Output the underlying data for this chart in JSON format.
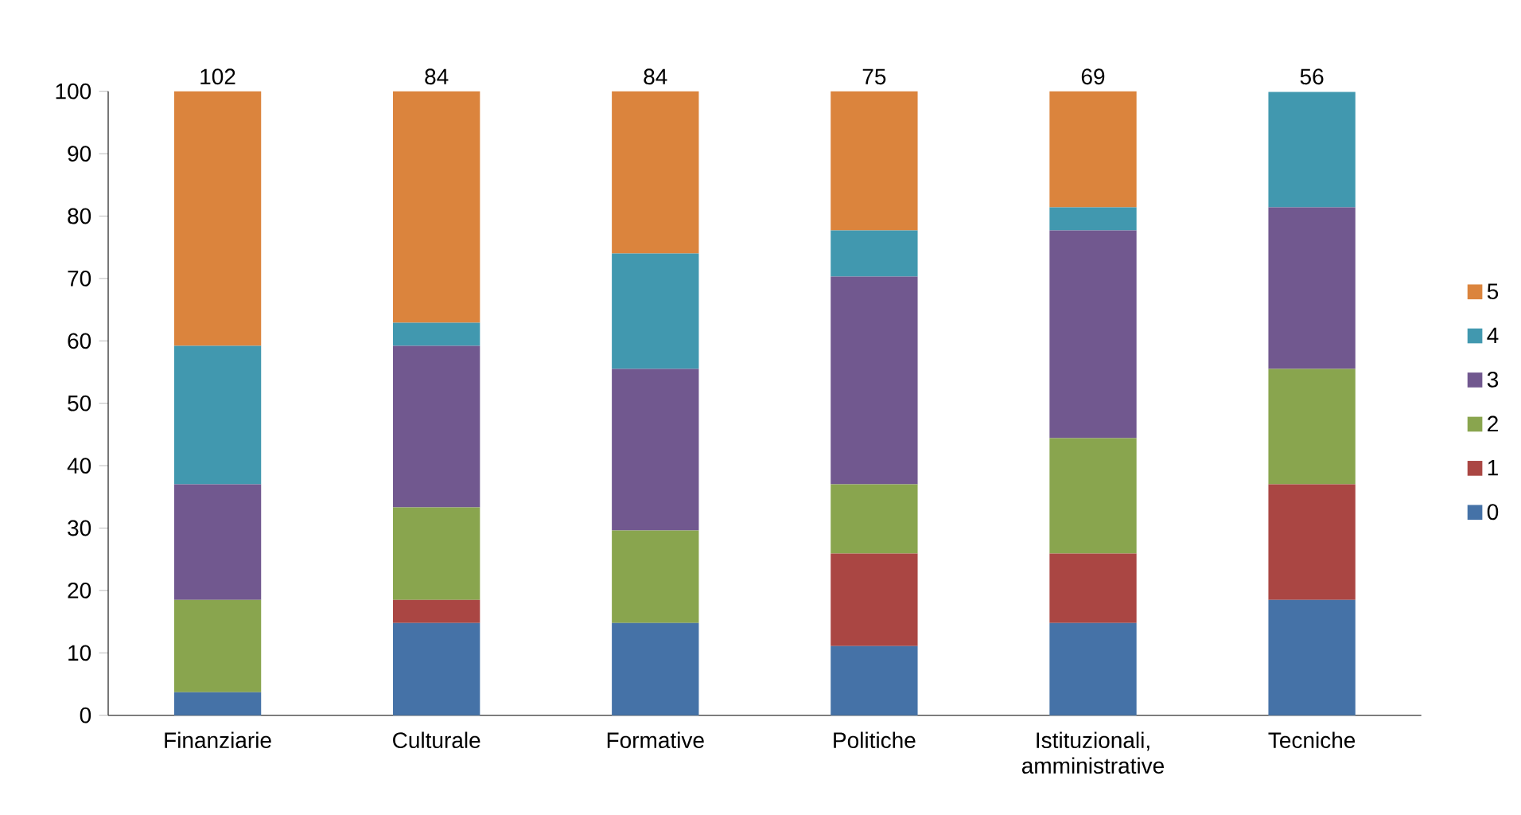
{
  "chart_data": {
    "type": "bar",
    "stacked": true,
    "categories": [
      "Finanziarie",
      "Culturale",
      "Formative",
      "Politiche",
      "Istituzionali, amministrative",
      "Tecniche"
    ],
    "series": [
      {
        "name": "0",
        "color": "#4572a7",
        "values": [
          3.7,
          14.8,
          14.8,
          11.1,
          14.8,
          18.5
        ]
      },
      {
        "name": "1",
        "color": "#aa4643",
        "values": [
          0,
          3.7,
          0,
          14.8,
          11.1,
          18.5
        ]
      },
      {
        "name": "2",
        "color": "#89a54e",
        "values": [
          14.8,
          14.8,
          14.8,
          11.1,
          18.5,
          18.5
        ]
      },
      {
        "name": "3",
        "color": "#71588f",
        "values": [
          18.5,
          25.9,
          25.9,
          33.3,
          33.3,
          25.9
        ]
      },
      {
        "name": "4",
        "color": "#4198af",
        "values": [
          22.2,
          3.7,
          18.5,
          7.4,
          3.7,
          18.5
        ]
      },
      {
        "name": "5",
        "color": "#db843d",
        "values": [
          40.8,
          37.1,
          26,
          22.3,
          18.6,
          0
        ]
      }
    ],
    "annotations": [
      {
        "text": "102",
        "x": "Finanziarie",
        "y": 100
      },
      {
        "text": "84",
        "x": "Culturale",
        "y": 100
      },
      {
        "text": "84",
        "x": "Formative",
        "y": 100
      },
      {
        "text": "75",
        "x": "Politiche",
        "y": 100
      },
      {
        "text": "69",
        "x": "Istituzionali, amministrative",
        "y": 100
      },
      {
        "text": "56",
        "x": "Tecniche",
        "y": 100
      }
    ],
    "ylim": [
      0,
      100
    ],
    "yticks": [
      0,
      10,
      20,
      30,
      40,
      50,
      60,
      70,
      80,
      90,
      100
    ],
    "grid": false,
    "legend": "right"
  }
}
